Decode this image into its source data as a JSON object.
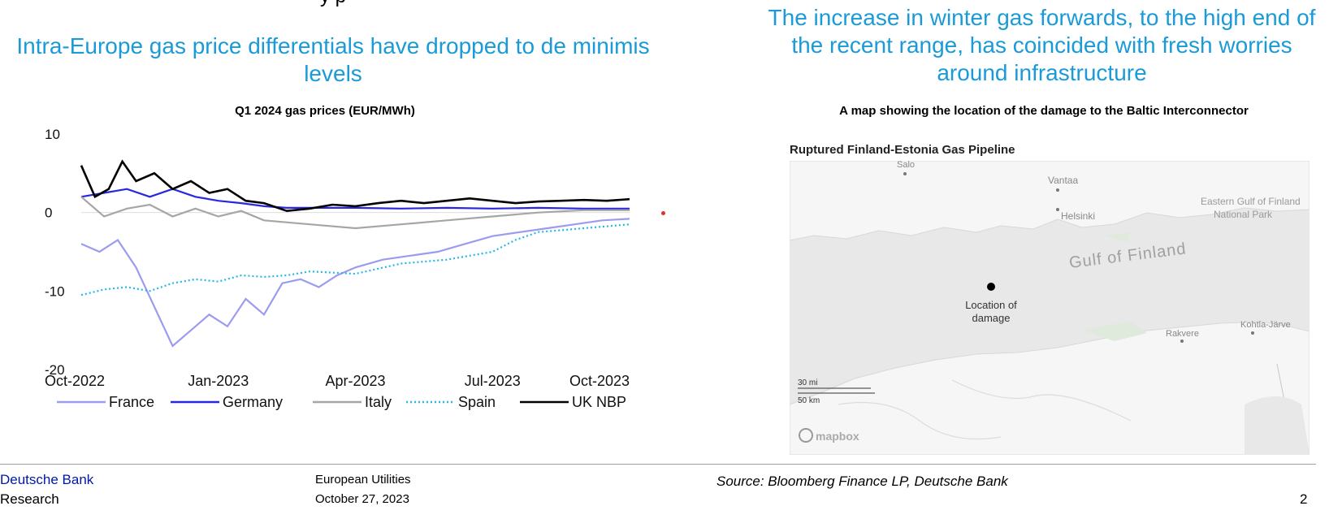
{
  "top_fragment": "y                                              p",
  "left": {
    "headline": "Intra-Europe gas price differentials have dropped to de minimis levels",
    "chart_title": "Q1 2024 gas prices (EUR/MWh)"
  },
  "right": {
    "headline": "The increase in winter gas forwards, to the high end of the recent range, has coincided with fresh worries around infrastructure",
    "map_title": "A map showing the location of the damage to the Baltic Interconnector",
    "map": {
      "heading": "Ruptured Finland-Estonia Gas Pipeline",
      "labels": {
        "salo": "Salo",
        "vantaa": "Vantaa",
        "helsinki": "Helsinki",
        "eastern_gulf_1": "Eastern Gulf of Finland",
        "eastern_gulf_2": "National Park",
        "gulf": "Gulf of Finland",
        "damage_1": "Location of",
        "damage_2": "damage",
        "rakvere": "Rakvere",
        "kohtla": "Kohtla-Järve",
        "scale_mi": "30 mi",
        "scale_km": "50 km",
        "attribution": "mapbox"
      }
    }
  },
  "chart_data": {
    "type": "line",
    "title": "Q1 2024 gas prices (EUR/MWh)",
    "ylim": [
      -20,
      10
    ],
    "yticks": [
      10,
      0,
      -10,
      -20
    ],
    "xlim": [
      "Oct-2022",
      "Oct-2023"
    ],
    "xticks": [
      "Oct-2022",
      "Jan-2023",
      "Apr-2023",
      "Jul-2023",
      "Oct-2023"
    ],
    "legend_position": "bottom",
    "series": [
      {
        "name": "France",
        "color": "#9b9bef",
        "style": "solid",
        "points": [
          [
            0,
            -4
          ],
          [
            0.4,
            -5
          ],
          [
            0.8,
            -3.5
          ],
          [
            1.2,
            -7
          ],
          [
            1.6,
            -12
          ],
          [
            2,
            -17
          ],
          [
            2.4,
            -15
          ],
          [
            2.8,
            -13
          ],
          [
            3.2,
            -14.5
          ],
          [
            3.6,
            -11
          ],
          [
            4,
            -13
          ],
          [
            4.4,
            -9
          ],
          [
            4.8,
            -8.5
          ],
          [
            5.2,
            -9.5
          ],
          [
            5.6,
            -8
          ],
          [
            6,
            -7
          ],
          [
            6.6,
            -6
          ],
          [
            7.2,
            -5.5
          ],
          [
            7.8,
            -5
          ],
          [
            8.4,
            -4
          ],
          [
            9,
            -3
          ],
          [
            9.6,
            -2.5
          ],
          [
            10.2,
            -2
          ],
          [
            10.8,
            -1.5
          ],
          [
            11.4,
            -1
          ],
          [
            12,
            -0.8
          ]
        ]
      },
      {
        "name": "Germany",
        "color": "#2828e0",
        "style": "solid",
        "points": [
          [
            0,
            2
          ],
          [
            0.5,
            2.5
          ],
          [
            1,
            3
          ],
          [
            1.5,
            2
          ],
          [
            2,
            3
          ],
          [
            2.5,
            2
          ],
          [
            3,
            1.5
          ],
          [
            3.5,
            1.2
          ],
          [
            4,
            0.8
          ],
          [
            4.5,
            0.6
          ],
          [
            5,
            0.6
          ],
          [
            6,
            0.6
          ],
          [
            7,
            0.5
          ],
          [
            8,
            0.6
          ],
          [
            9,
            0.5
          ],
          [
            10,
            0.6
          ],
          [
            11,
            0.5
          ],
          [
            12,
            0.5
          ]
        ]
      },
      {
        "name": "Italy",
        "color": "#a6a6a6",
        "style": "solid",
        "points": [
          [
            0,
            2
          ],
          [
            0.5,
            -0.5
          ],
          [
            1,
            0.5
          ],
          [
            1.5,
            1
          ],
          [
            2,
            -0.5
          ],
          [
            2.5,
            0.5
          ],
          [
            3,
            -0.5
          ],
          [
            3.5,
            0.2
          ],
          [
            4,
            -1
          ],
          [
            5,
            -1.5
          ],
          [
            6,
            -2
          ],
          [
            7,
            -1.5
          ],
          [
            8,
            -1
          ],
          [
            9,
            -0.5
          ],
          [
            10,
            0
          ],
          [
            11,
            0.3
          ],
          [
            12,
            0.3
          ]
        ]
      },
      {
        "name": "Spain",
        "color": "#26b6e8",
        "style": "dotted",
        "points": [
          [
            0,
            -10.5
          ],
          [
            0.5,
            -9.8
          ],
          [
            1,
            -9.5
          ],
          [
            1.5,
            -10
          ],
          [
            2,
            -9
          ],
          [
            2.5,
            -8.5
          ],
          [
            3,
            -8.8
          ],
          [
            3.5,
            -8
          ],
          [
            4,
            -8.2
          ],
          [
            4.5,
            -8
          ],
          [
            5,
            -7.5
          ],
          [
            6,
            -7.8
          ],
          [
            7,
            -6.5
          ],
          [
            8,
            -6
          ],
          [
            9,
            -5
          ],
          [
            9.5,
            -3.5
          ],
          [
            10,
            -2.5
          ],
          [
            11,
            -2
          ],
          [
            12,
            -1.5
          ]
        ]
      },
      {
        "name": "UK NBP",
        "color": "#000000",
        "style": "solid",
        "points": [
          [
            0,
            6
          ],
          [
            0.3,
            2
          ],
          [
            0.6,
            3
          ],
          [
            0.9,
            6.5
          ],
          [
            1.2,
            4
          ],
          [
            1.6,
            5
          ],
          [
            2,
            3
          ],
          [
            2.4,
            4
          ],
          [
            2.8,
            2.5
          ],
          [
            3.2,
            3
          ],
          [
            3.6,
            1.5
          ],
          [
            4,
            1.2
          ],
          [
            4.5,
            0.2
          ],
          [
            5,
            0.5
          ],
          [
            5.5,
            1
          ],
          [
            6,
            0.8
          ],
          [
            6.5,
            1.2
          ],
          [
            7,
            1.5
          ],
          [
            7.5,
            1.2
          ],
          [
            8,
            1.5
          ],
          [
            8.5,
            1.8
          ],
          [
            9,
            1.5
          ],
          [
            9.5,
            1.2
          ],
          [
            10,
            1.4
          ],
          [
            10.5,
            1.5
          ],
          [
            11,
            1.6
          ],
          [
            11.5,
            1.5
          ],
          [
            12,
            1.7
          ]
        ]
      }
    ]
  },
  "footer": {
    "brand_line1": "Deutsche Bank",
    "brand_line2": "Research",
    "doc_line1": "European Utilities",
    "doc_line2": "October 27, 2023",
    "source": "Source: Bloomberg Finance LP, Deutsche Bank",
    "page_number": "2"
  },
  "colors": {
    "headline": "#1a9bd7",
    "brand": "#0018a8"
  }
}
